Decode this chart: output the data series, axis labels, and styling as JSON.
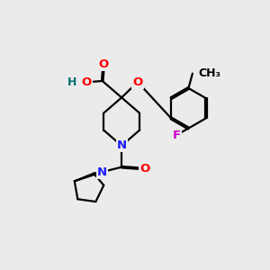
{
  "bg_color": "#ebebeb",
  "atom_colors": {
    "C": "#000000",
    "O": "#ff0000",
    "N": "#1a1aff",
    "F": "#cc00cc",
    "H": "#007070"
  },
  "bond_color": "#000000",
  "bond_width": 1.6,
  "font_size": 9.5,
  "fig_size": [
    3.0,
    3.0
  ],
  "dpi": 100
}
